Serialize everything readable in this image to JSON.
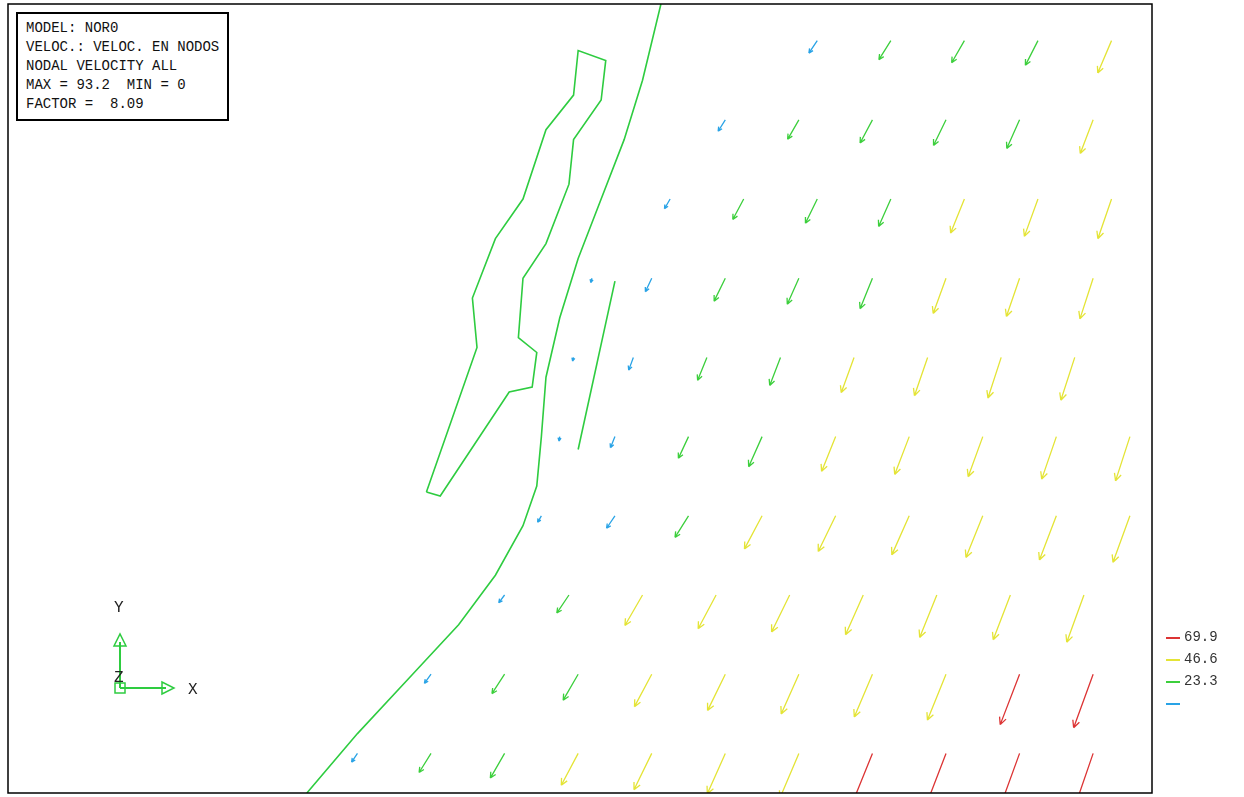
{
  "chart_data": {
    "type": "vector_field",
    "header": [
      "MODEL: NOR0",
      "VELOC.: VELOC. EN NODOS",
      "NODAL VELOCITY ALL",
      "MAX = 93.2  MIN = 0",
      "FACTOR =  8.09"
    ],
    "triad": {
      "x": "X",
      "y": "Y",
      "z": "Z"
    },
    "xlim": [
      0,
      124.4
    ],
    "ylim": [
      0,
      79.7
    ],
    "tick_labels": false,
    "color_bar": {
      "levels": [
        23.3,
        46.6,
        69.9
      ],
      "colors": [
        "#29a3e6",
        "#3ccf3c",
        "#e4e436",
        "#dc3434"
      ]
    },
    "outlines": {
      "color": "#2ecc40",
      "lines": [
        [
          [
            32.5,
            0
          ],
          [
            38,
            6
          ],
          [
            44,
            12
          ],
          [
            49,
            17
          ],
          [
            53,
            22
          ],
          [
            56,
            27
          ],
          [
            57.5,
            31
          ],
          [
            58,
            36
          ],
          [
            58.5,
            42
          ],
          [
            60,
            48
          ],
          [
            62,
            54
          ],
          [
            64.5,
            60
          ],
          [
            67,
            66
          ],
          [
            69,
            72
          ],
          [
            71,
            79.7
          ]
        ],
        [
          [
            45.5,
            30.4
          ],
          [
            47,
            30
          ],
          [
            54.5,
            40.5
          ],
          [
            57,
            41
          ],
          [
            57.5,
            44.5
          ],
          [
            55.5,
            46
          ],
          [
            56,
            52
          ],
          [
            58.5,
            55.5
          ],
          [
            61,
            61.5
          ],
          [
            61.5,
            66
          ],
          [
            64.5,
            70
          ],
          [
            65,
            74
          ],
          [
            62,
            75
          ],
          [
            61.5,
            70.5
          ],
          [
            58.5,
            67
          ],
          [
            56,
            60
          ],
          [
            53,
            56
          ],
          [
            50.5,
            50
          ],
          [
            51,
            45
          ],
          [
            45.5,
            30.4
          ]
        ],
        [
          [
            62,
            34.7
          ],
          [
            66,
            51.7
          ]
        ]
      ]
    },
    "vectors": [
      [
        38,
        4,
        14,
        236
      ],
      [
        46,
        4,
        30,
        238
      ],
      [
        54,
        4,
        38,
        240
      ],
      [
        62,
        4,
        48,
        242
      ],
      [
        70,
        4,
        54,
        244
      ],
      [
        78,
        4,
        59,
        246
      ],
      [
        86,
        4,
        65,
        247
      ],
      [
        94,
        4,
        72,
        248
      ],
      [
        102,
        4,
        78,
        249
      ],
      [
        110,
        4,
        84,
        250
      ],
      [
        118,
        4,
        89,
        251
      ],
      [
        46,
        12,
        15,
        234
      ],
      [
        54,
        12,
        31,
        237
      ],
      [
        62,
        12,
        40,
        240
      ],
      [
        70,
        12,
        49,
        242
      ],
      [
        78,
        12,
        54,
        244
      ],
      [
        86,
        12,
        58,
        246
      ],
      [
        94,
        12,
        62,
        247
      ],
      [
        102,
        12,
        66,
        248
      ],
      [
        110,
        12,
        72,
        249
      ],
      [
        118,
        12,
        76,
        250
      ],
      [
        54,
        20,
        13,
        233
      ],
      [
        61,
        20,
        29,
        236
      ],
      [
        69,
        20,
        47,
        240
      ],
      [
        77,
        20,
        51,
        242
      ],
      [
        85,
        20,
        55,
        244
      ],
      [
        93,
        20,
        58,
        246
      ],
      [
        101,
        20,
        61,
        248
      ],
      [
        109,
        20,
        64,
        249
      ],
      [
        117,
        20,
        67,
        250
      ],
      [
        58,
        28,
        10,
        240
      ],
      [
        66,
        28,
        20,
        236
      ],
      [
        74,
        28,
        34,
        238
      ],
      [
        82,
        28,
        50,
        242
      ],
      [
        90,
        28,
        53,
        244
      ],
      [
        98,
        28,
        57,
        246
      ],
      [
        106,
        28,
        60,
        248
      ],
      [
        114,
        28,
        63,
        249
      ],
      [
        122,
        28,
        66,
        250
      ],
      [
        60,
        36,
        6,
        260
      ],
      [
        66,
        36,
        16,
        248
      ],
      [
        74,
        36,
        32,
        245
      ],
      [
        82,
        36,
        44,
        246
      ],
      [
        90,
        36,
        50,
        248
      ],
      [
        98,
        36,
        54,
        249
      ],
      [
        106,
        36,
        57,
        250
      ],
      [
        114,
        36,
        60,
        251
      ],
      [
        122,
        36,
        62,
        252
      ],
      [
        61.5,
        44,
        5,
        255
      ],
      [
        68,
        44,
        18,
        250
      ],
      [
        76,
        44,
        33,
        248
      ],
      [
        84,
        44,
        40,
        249
      ],
      [
        92,
        44,
        50,
        250
      ],
      [
        100,
        44,
        54,
        251
      ],
      [
        108,
        44,
        57,
        252
      ],
      [
        116,
        44,
        60,
        252
      ],
      [
        63.5,
        52,
        6,
        255
      ],
      [
        70,
        52,
        20,
        245
      ],
      [
        78,
        52,
        34,
        244
      ],
      [
        86,
        52,
        38,
        246
      ],
      [
        94,
        52,
        44,
        248
      ],
      [
        102,
        52,
        50,
        250
      ],
      [
        110,
        52,
        54,
        251
      ],
      [
        118,
        52,
        57,
        252
      ],
      [
        72,
        60,
        15,
        240
      ],
      [
        80,
        60,
        31,
        242
      ],
      [
        88,
        60,
        36,
        244
      ],
      [
        96,
        60,
        40,
        246
      ],
      [
        104,
        60,
        49,
        248
      ],
      [
        112,
        60,
        53,
        250
      ],
      [
        120,
        60,
        56,
        251
      ],
      [
        78,
        68,
        18,
        238
      ],
      [
        86,
        68,
        30,
        240
      ],
      [
        94,
        68,
        35,
        242
      ],
      [
        102,
        68,
        38,
        244
      ],
      [
        110,
        68,
        42,
        246
      ],
      [
        118,
        68,
        48,
        249
      ],
      [
        88,
        76,
        20,
        236
      ],
      [
        96,
        76,
        30,
        238
      ],
      [
        104,
        76,
        34,
        240
      ],
      [
        112,
        76,
        37,
        243
      ],
      [
        120,
        76,
        47,
        247
      ]
    ]
  }
}
